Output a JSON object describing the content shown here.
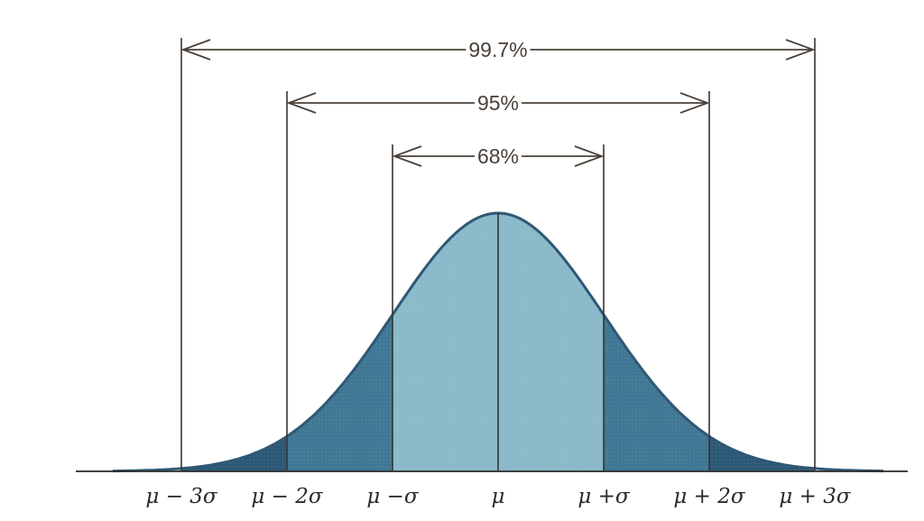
{
  "diagram": {
    "intervals": [
      {
        "sigma": 3,
        "label": "99.7%"
      },
      {
        "sigma": 2,
        "label": "95%"
      },
      {
        "sigma": 1,
        "label": "68%"
      }
    ],
    "tick_labels": [
      {
        "sigma": -3,
        "label": "μ − 3σ"
      },
      {
        "sigma": -2,
        "label": "μ − 2σ"
      },
      {
        "sigma": -1,
        "label": "μ −σ"
      },
      {
        "sigma": 0,
        "label": "μ"
      },
      {
        "sigma": 1,
        "label": "μ +σ"
      },
      {
        "sigma": 2,
        "label": "μ + 2σ"
      },
      {
        "sigma": 3,
        "label": "μ + 3σ"
      }
    ],
    "colors": {
      "band_inner": "#8ab9c9",
      "band_middle": "#3f7794",
      "band_outer": "#2b5877",
      "curve": "#2f5874"
    }
  }
}
